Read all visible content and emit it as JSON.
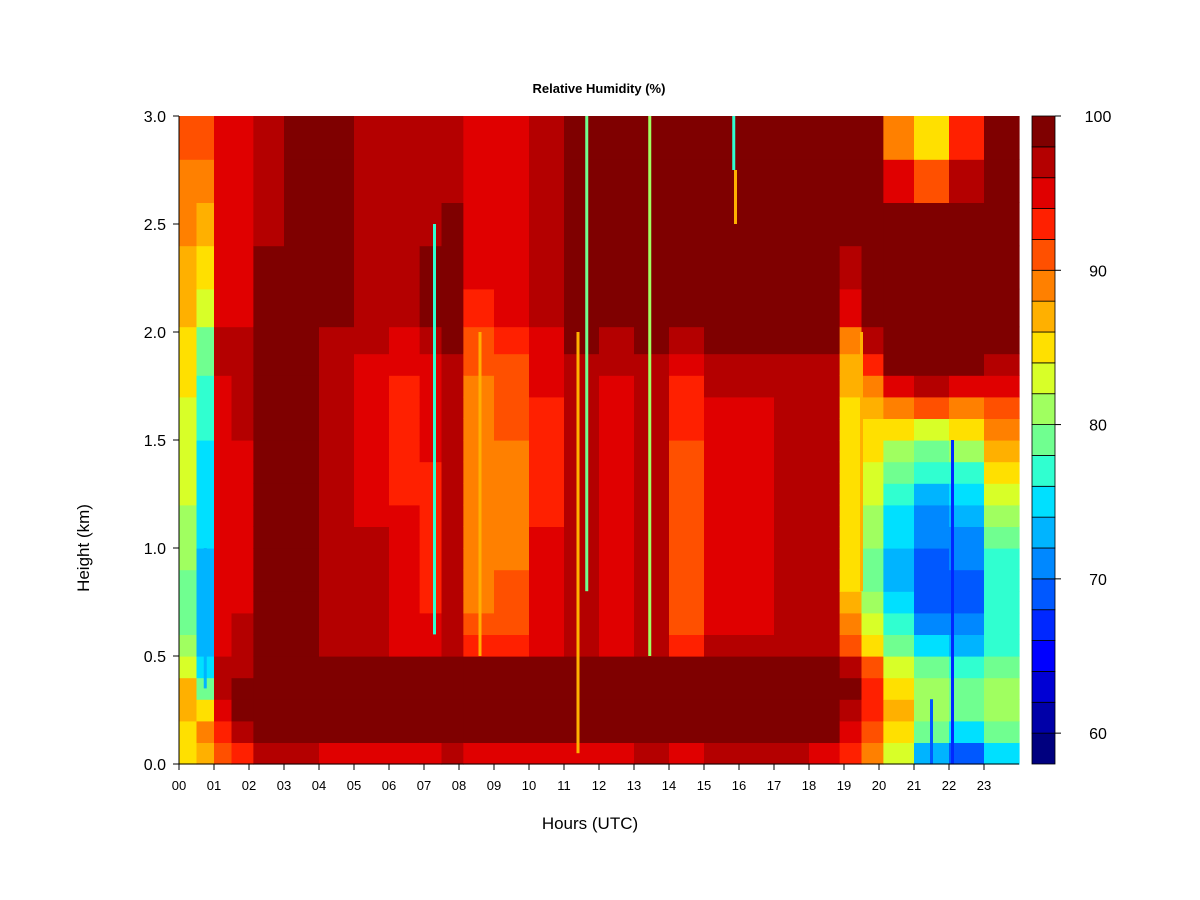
{
  "chart_data": {
    "type": "heatmap",
    "title": "Relative Humidity (%)",
    "xlabel": "Hours (UTC)",
    "ylabel": "Height (km)",
    "x_ticks": [
      "00",
      "01",
      "02",
      "03",
      "04",
      "05",
      "06",
      "07",
      "08",
      "09",
      "10",
      "11",
      "12",
      "13",
      "14",
      "15",
      "16",
      "17",
      "18",
      "19",
      "20",
      "21",
      "22",
      "23"
    ],
    "x_range": [
      0,
      24
    ],
    "y_ticks": [
      "0.0",
      "0.5",
      "1.0",
      "1.5",
      "2.0",
      "2.5",
      "3.0"
    ],
    "y_range": [
      0,
      3
    ],
    "colorbar": {
      "ticks": [
        "60",
        "70",
        "80",
        "90",
        "100"
      ],
      "range": [
        58,
        100
      ],
      "colors": [
        "#00007F",
        "#0000A8",
        "#0000D4",
        "#0000FF",
        "#0028FF",
        "#0058FF",
        "#0088FF",
        "#00B4FF",
        "#00E0FF",
        "#30FFD0",
        "#70FF90",
        "#A0FF60",
        "#D8FF28",
        "#FFE000",
        "#FFB000",
        "#FF8000",
        "#FF5000",
        "#FF2000",
        "#E00000",
        "#B40000",
        "#7F0000"
      ]
    },
    "heights_km": [
      0.05,
      0.15,
      0.25,
      0.35,
      0.45,
      0.55,
      0.65,
      0.75,
      0.85,
      0.95,
      1.05,
      1.15,
      1.25,
      1.35,
      1.45,
      1.55,
      1.65,
      1.75,
      1.85,
      1.95,
      2.1,
      2.3,
      2.5,
      2.7,
      2.9
    ],
    "hours": [
      0.25,
      0.75,
      1.25,
      1.75,
      2.5,
      3.5,
      4.5,
      5.5,
      6.5,
      7.25,
      7.75,
      8.5,
      9.5,
      10.5,
      11.5,
      12.5,
      13.5,
      14.5,
      15.5,
      16.5,
      17.5,
      18.5,
      19.25,
      19.75,
      20.5,
      21.5,
      22.5,
      23.5
    ],
    "rh_columns": [
      [
        84,
        85,
        86,
        87,
        82,
        80,
        79,
        79,
        79,
        80,
        80,
        81,
        82,
        82,
        82,
        83,
        83,
        84,
        85,
        85,
        86,
        87,
        88,
        89,
        90
      ],
      [
        86,
        88,
        84,
        78,
        74,
        72,
        72,
        72,
        73,
        73,
        74,
        74,
        75,
        75,
        75,
        76,
        76,
        77,
        78,
        79,
        82,
        84,
        86,
        88,
        90
      ],
      [
        90,
        93,
        95,
        96,
        96,
        95,
        95,
        95,
        95,
        94,
        94,
        95,
        95,
        95,
        95,
        95,
        95,
        95,
        96,
        96,
        95,
        95,
        95,
        94,
        94
      ],
      [
        92,
        96,
        98,
        98,
        97,
        96,
        96,
        95,
        95,
        95,
        95,
        95,
        95,
        95,
        95,
        96,
        96,
        96,
        96,
        96,
        95,
        95,
        95,
        95,
        95
      ],
      [
        96,
        99,
        100,
        100,
        100,
        99,
        99,
        99,
        99,
        99,
        99,
        99,
        99,
        99,
        99,
        98,
        98,
        98,
        98,
        98,
        98,
        98,
        97,
        97,
        97
      ],
      [
        96,
        99,
        100,
        100,
        100,
        99,
        99,
        99,
        99,
        99,
        99,
        99,
        99,
        99,
        99,
        99,
        99,
        99,
        99,
        99,
        98,
        98,
        98,
        98,
        98
      ],
      [
        95,
        99,
        100,
        100,
        100,
        97,
        97,
        97,
        97,
        97,
        97,
        96,
        96,
        96,
        96,
        97,
        97,
        97,
        97,
        97,
        98,
        98,
        98,
        98,
        98
      ],
      [
        95,
        99,
        100,
        100,
        100,
        96,
        96,
        96,
        96,
        96,
        96,
        95,
        95,
        95,
        95,
        95,
        95,
        95,
        95,
        96,
        97,
        97,
        97,
        97,
        97
      ],
      [
        95,
        99,
        100,
        100,
        100,
        95,
        94,
        94,
        94,
        94,
        94,
        94,
        93,
        93,
        93,
        93,
        93,
        93,
        94,
        95,
        97,
        97,
        97,
        96,
        96
      ],
      [
        95,
        99,
        100,
        100,
        98,
        95,
        94,
        93,
        93,
        93,
        93,
        93,
        93,
        93,
        94,
        94,
        94,
        94,
        95,
        96,
        98,
        98,
        97,
        96,
        96
      ],
      [
        96,
        99,
        100,
        100,
        99,
        97,
        96,
        96,
        96,
        96,
        96,
        96,
        96,
        96,
        96,
        96,
        96,
        97,
        97,
        98,
        99,
        99,
        98,
        97,
        97
      ],
      [
        95,
        99,
        100,
        100,
        98,
        92,
        90,
        89,
        88,
        88,
        88,
        88,
        88,
        88,
        88,
        89,
        89,
        89,
        90,
        91,
        93,
        94,
        95,
        94,
        94
      ],
      [
        95,
        99,
        100,
        100,
        98,
        93,
        91,
        90,
        90,
        89,
        89,
        89,
        89,
        89,
        89,
        90,
        90,
        90,
        91,
        93,
        95,
        95,
        95,
        95,
        95
      ],
      [
        95,
        99,
        100,
        100,
        98,
        95,
        94,
        94,
        94,
        94,
        94,
        93,
        93,
        93,
        93,
        93,
        93,
        94,
        94,
        95,
        97,
        97,
        97,
        97,
        97
      ],
      [
        95,
        99,
        100,
        100,
        98,
        96,
        96,
        96,
        96,
        96,
        96,
        96,
        96,
        96,
        96,
        96,
        96,
        97,
        97,
        98,
        99,
        99,
        99,
        99,
        99
      ],
      [
        95,
        99,
        100,
        100,
        98,
        95,
        95,
        95,
        95,
        95,
        95,
        95,
        95,
        95,
        95,
        95,
        95,
        95,
        96,
        97,
        99,
        99,
        99,
        99,
        99
      ],
      [
        96,
        99,
        100,
        100,
        98,
        96,
        96,
        96,
        96,
        96,
        96,
        96,
        96,
        96,
        96,
        96,
        96,
        97,
        97,
        98,
        99,
        99,
        99,
        99,
        99
      ],
      [
        95,
        99,
        100,
        100,
        99,
        93,
        91,
        90,
        90,
        90,
        90,
        90,
        91,
        91,
        91,
        92,
        92,
        93,
        94,
        96,
        98,
        99,
        99,
        99,
        99
      ],
      [
        96,
        99,
        100,
        100,
        99,
        96,
        95,
        95,
        95,
        95,
        95,
        95,
        95,
        95,
        95,
        95,
        95,
        96,
        96,
        98,
        99,
        99,
        99,
        99,
        99
      ],
      [
        96,
        99,
        100,
        100,
        99,
        96,
        95,
        95,
        95,
        95,
        95,
        95,
        95,
        95,
        95,
        95,
        95,
        96,
        96,
        98,
        99,
        99,
        99,
        99,
        99
      ],
      [
        96,
        99,
        100,
        100,
        99,
        97,
        96,
        96,
        96,
        96,
        96,
        96,
        96,
        96,
        96,
        96,
        96,
        97,
        97,
        98,
        99,
        99,
        99,
        99,
        99
      ],
      [
        95,
        98,
        100,
        100,
        99,
        97,
        96,
        96,
        96,
        96,
        96,
        96,
        96,
        96,
        96,
        96,
        96,
        97,
        97,
        98,
        99,
        99,
        99,
        99,
        99
      ],
      [
        92,
        95,
        97,
        98,
        96,
        91,
        88,
        86,
        85,
        85,
        85,
        85,
        84,
        84,
        84,
        85,
        85,
        86,
        87,
        89,
        95,
        97,
        98,
        99,
        99
      ],
      [
        88,
        91,
        93,
        93,
        90,
        85,
        82,
        80,
        79,
        79,
        80,
        81,
        82,
        83,
        84,
        85,
        86,
        88,
        92,
        97,
        99,
        99,
        99,
        99,
        99
      ],
      [
        82,
        85,
        86,
        85,
        82,
        79,
        76,
        74,
        73,
        73,
        74,
        75,
        77,
        79,
        81,
        84,
        88,
        95,
        99,
        100,
        100,
        100,
        99,
        95,
        89
      ],
      [
        72,
        78,
        80,
        80,
        78,
        74,
        71,
        69,
        68,
        69,
        70,
        71,
        73,
        76,
        79,
        83,
        90,
        97,
        99,
        100,
        100,
        100,
        99,
        91,
        84
      ],
      [
        68,
        74,
        78,
        79,
        77,
        73,
        70,
        69,
        69,
        70,
        71,
        72,
        74,
        77,
        80,
        84,
        88,
        95,
        99,
        100,
        100,
        100,
        99,
        96,
        93
      ],
      [
        74,
        78,
        80,
        80,
        79,
        77,
        76,
        76,
        76,
        77,
        78,
        80,
        82,
        84,
        86,
        88,
        91,
        94,
        96,
        98,
        100,
        100,
        100,
        99,
        99
      ]
    ],
    "streaks": [
      {
        "hour": 0.75,
        "rh": 72,
        "y_from": 0.35,
        "y_to": 1.0
      },
      {
        "hour": 7.3,
        "rh": 76,
        "y_from": 0.6,
        "y_to": 2.5
      },
      {
        "hour": 8.6,
        "rh": 86,
        "y_from": 0.5,
        "y_to": 2.0
      },
      {
        "hour": 11.4,
        "rh": 86,
        "y_from": 0.05,
        "y_to": 2.0
      },
      {
        "hour": 11.65,
        "rh": 78,
        "y_from": 0.8,
        "y_to": 3.0
      },
      {
        "hour": 13.45,
        "rh": 80,
        "y_from": 0.5,
        "y_to": 3.0
      },
      {
        "hour": 15.85,
        "rh": 76,
        "y_from": 2.75,
        "y_to": 3.0
      },
      {
        "hour": 15.9,
        "rh": 86,
        "y_from": 2.5,
        "y_to": 2.75
      },
      {
        "hour": 19.5,
        "rh": 86,
        "y_from": 0.8,
        "y_to": 2.0
      },
      {
        "hour": 21.5,
        "rh": 68,
        "y_from": 0.0,
        "y_to": 0.3
      },
      {
        "hour": 22.1,
        "rh": 66,
        "y_from": 0.0,
        "y_to": 1.5
      }
    ]
  }
}
